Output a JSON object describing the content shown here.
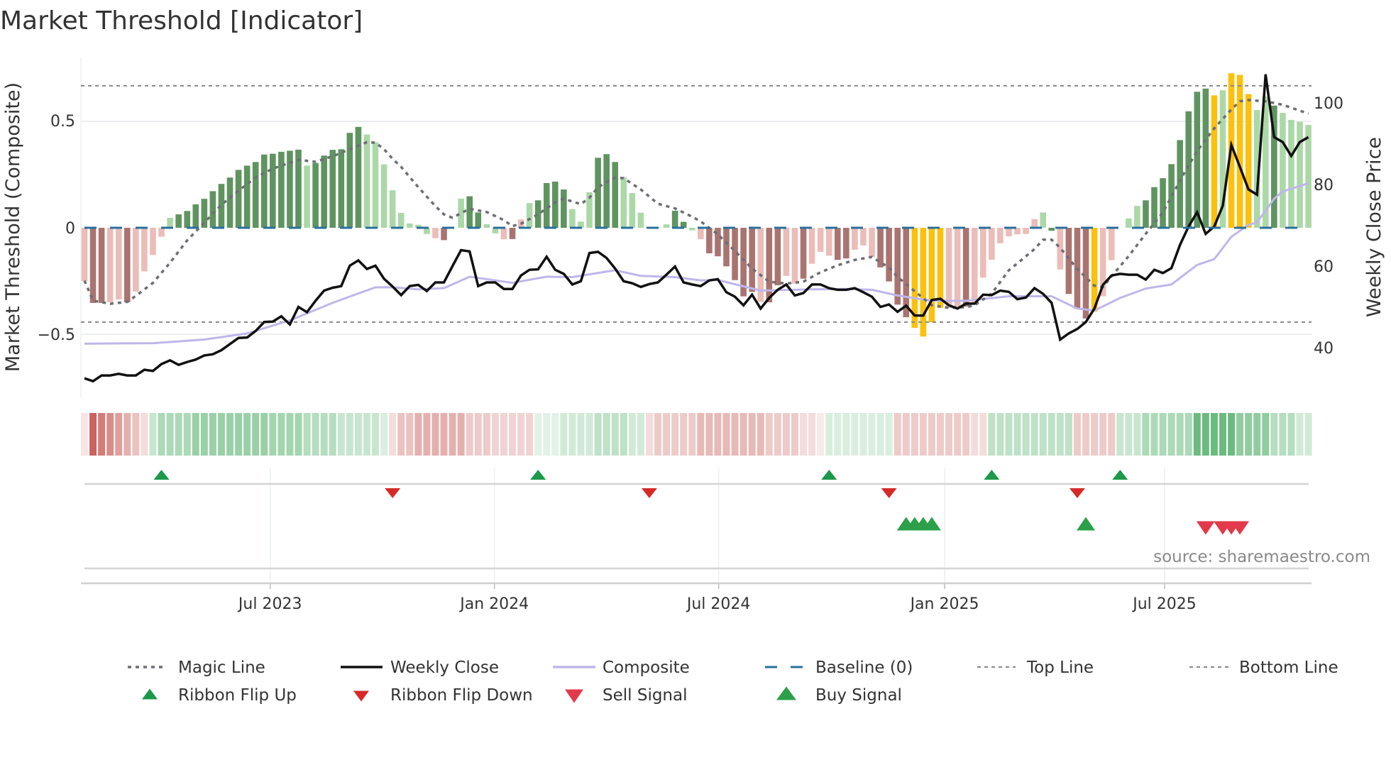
{
  "title": "Market Threshold [Indicator]",
  "source": "source: sharemaestro.com",
  "colors": {
    "bar_G": "#5f9460",
    "bar_g": "#acd8a8",
    "bar_R": "#a97470",
    "bar_r": "#ebbdb8",
    "bar_Y": "#fbc10c",
    "magic": "#6e6e76",
    "close": "#111111",
    "composite": "#bfb6ea",
    "baseline": "#2a6f9c",
    "flip_up": "#1a9a4a",
    "flip_down": "#d62a27",
    "buy": "#2ca048",
    "sell": "#e23a4a",
    "ribbon_red": "#c4504b",
    "ribbon_green": "#46aa5f"
  },
  "chart_data": {
    "type": "bar",
    "title": "Market Threshold [Indicator]",
    "ylabel": "Market Threshold (Composite)",
    "ylabel_right": "Weekly Close Price",
    "ylim": [
      -0.8,
      0.8
    ],
    "ylim_right": [
      30,
      110
    ],
    "yticks": [
      {
        "v": 0.5,
        "label": "0.5"
      },
      {
        "v": 0,
        "label": "0"
      },
      {
        "v": -0.5,
        "label": "−0.5"
      }
    ],
    "yticks_right": [
      {
        "v": 100,
        "label": "100"
      },
      {
        "v": 80,
        "label": "80"
      },
      {
        "v": 60,
        "label": "60"
      },
      {
        "v": 40,
        "label": "40"
      }
    ],
    "xticks": [
      {
        "week": 22.7,
        "label": "Jul 2023"
      },
      {
        "week": 48.9,
        "label": "Jan 2024"
      },
      {
        "week": 75.1,
        "label": "Jul 2024"
      },
      {
        "week": 101.5,
        "label": "Jan 2025"
      },
      {
        "week": 127.2,
        "label": "Jul 2025"
      }
    ],
    "top_line": 0.667,
    "bottom_line": -0.443,
    "baseline": 0,
    "composite_bars": [
      -0.25,
      -0.353,
      -0.353,
      -0.35,
      -0.337,
      -0.35,
      -0.3,
      -0.205,
      -0.128,
      -0.042,
      0.047,
      0.063,
      0.079,
      0.11,
      0.136,
      0.172,
      0.206,
      0.236,
      0.272,
      0.292,
      0.309,
      0.344,
      0.348,
      0.357,
      0.362,
      0.367,
      0.292,
      0.304,
      0.339,
      0.366,
      0.369,
      0.446,
      0.474,
      0.438,
      0.402,
      0.298,
      0.176,
      0.07,
      0.02,
      0.014,
      -0.029,
      -0.049,
      -0.058,
      0,
      0.137,
      0.148,
      0.072,
      0.017,
      -0.026,
      -0.054,
      -0.053,
      0.039,
      0.116,
      0.129,
      0.21,
      0.217,
      0.18,
      0.088,
      0.029,
      0.167,
      0.329,
      0.346,
      0.309,
      0.238,
      0.163,
      0.071,
      0.004,
      0.002,
      0.016,
      0.08,
      0.028,
      -0.012,
      -0.054,
      -0.12,
      -0.134,
      -0.181,
      -0.246,
      -0.322,
      -0.301,
      -0.348,
      -0.35,
      -0.27,
      -0.226,
      -0.262,
      -0.239,
      -0.169,
      -0.113,
      -0.131,
      -0.151,
      -0.144,
      -0.103,
      -0.083,
      -0.138,
      -0.186,
      -0.252,
      -0.361,
      -0.42,
      -0.47,
      -0.511,
      -0.444,
      -0.376,
      -0.376,
      -0.37,
      -0.37,
      -0.353,
      -0.234,
      -0.15,
      -0.073,
      -0.04,
      -0.031,
      -0.029,
      0.041,
      0.072,
      -0.014,
      -0.196,
      -0.311,
      -0.381,
      -0.426,
      -0.394,
      -0.322,
      -0.152,
      0,
      0.044,
      0.103,
      0.129,
      0.191,
      0.233,
      0.299,
      0.412,
      0.547,
      0.639,
      0.654,
      0.622,
      0.646,
      0.726,
      0.718,
      0.628,
      0.553,
      0.617,
      0.574,
      0.54,
      0.507,
      0.498,
      0.483
    ],
    "bar_states": "rRRrrRrrrrgGGGGGGGGGGGGGGGgGGGGGGggggggggrRRgGGggrRrgGGGGgggGGGggggggGGgrRRRRRRrRRrrRrrrRRrrrRRRRYYYYrrRrrrrrrrrgGrRRRYrrrggGGGGGGGGYgYYYggGggggg",
    "weekly_close": [
      32.5,
      31.8,
      33.2,
      33.2,
      33.6,
      33.2,
      33.2,
      34.6,
      34.3,
      36,
      36.9,
      35.8,
      36.5,
      37.1,
      38.1,
      38.4,
      39.4,
      40.9,
      42.4,
      42.5,
      44.1,
      46.3,
      46.4,
      47.7,
      45.7,
      50,
      48.7,
      51.5,
      54,
      54.7,
      55.1,
      60.1,
      61.4,
      59.3,
      60.1,
      56.9,
      55,
      52.9,
      55.1,
      55.4,
      53.9,
      56,
      56,
      60,
      63.9,
      63.6,
      55.1,
      56,
      56,
      54.4,
      54.4,
      57.7,
      59.1,
      59.2,
      62.3,
      59.1,
      58.1,
      55.5,
      56.3,
      63.2,
      63.5,
      62,
      59.4,
      56.3,
      55.8,
      54.9,
      55.6,
      56,
      57.9,
      59.9,
      56,
      55.5,
      55.1,
      56.5,
      56.8,
      53.6,
      52.5,
      50.4,
      53,
      49.6,
      52.2,
      54.2,
      55.5,
      52.8,
      53.4,
      55.5,
      55.5,
      54.6,
      54.2,
      54.2,
      54.6,
      53.6,
      52.5,
      50,
      50.6,
      48.8,
      50.3,
      47.9,
      47.9,
      51.7,
      52,
      50.4,
      49.6,
      50.8,
      50.8,
      53,
      52.9,
      54,
      53.7,
      51.9,
      52.3,
      54.6,
      53.2,
      51,
      42,
      43.5,
      44.6,
      46.3,
      49.6,
      55.4,
      57.7,
      58.1,
      57.9,
      57.9,
      56.7,
      59.1,
      58.3,
      59.5,
      65.2,
      69.7,
      73.2,
      67.9,
      69.7,
      74.8,
      89.7,
      84.3,
      78.8,
      77.5,
      107,
      91.6,
      90.4,
      87,
      90.4,
      91.6
    ],
    "composite_line": [
      [
        1,
        41
      ],
      [
        9,
        41.1
      ],
      [
        15,
        42
      ],
      [
        20,
        43.5
      ],
      [
        25,
        46.7
      ],
      [
        30,
        51
      ],
      [
        33,
        53.3
      ],
      [
        35,
        54.8
      ],
      [
        37,
        54.8
      ],
      [
        40,
        54.3
      ],
      [
        43,
        54.6
      ],
      [
        46,
        57.4
      ],
      [
        51,
        55.9
      ],
      [
        55,
        57.4
      ],
      [
        58,
        57.3
      ],
      [
        63,
        59
      ],
      [
        66,
        57.6
      ],
      [
        70,
        57.3
      ],
      [
        73,
        56.5
      ],
      [
        75,
        56.6
      ],
      [
        80,
        54
      ],
      [
        86,
        54.3
      ],
      [
        90,
        54.4
      ],
      [
        93,
        54.2
      ],
      [
        96,
        52.8
      ],
      [
        100,
        51.5
      ],
      [
        104,
        51.5
      ],
      [
        109,
        52.6
      ],
      [
        114,
        52.6
      ],
      [
        117,
        49.6
      ],
      [
        119,
        49.1
      ],
      [
        122,
        52.2
      ],
      [
        125,
        54.5
      ],
      [
        128,
        55.5
      ],
      [
        131,
        60.3
      ],
      [
        133,
        61.7
      ],
      [
        135,
        67.2
      ],
      [
        137,
        70.1
      ],
      [
        138,
        70.7
      ],
      [
        140,
        76.5
      ],
      [
        141,
        78.3
      ],
      [
        144,
        80.3
      ]
    ],
    "magic_line": [
      [
        1,
        -0.248
      ],
      [
        2,
        -0.342
      ],
      [
        4,
        -0.357
      ],
      [
        6,
        -0.348
      ],
      [
        7,
        -0.32
      ],
      [
        9,
        -0.259
      ],
      [
        11,
        -0.164
      ],
      [
        13,
        -0.059
      ],
      [
        15,
        0.024
      ],
      [
        17,
        0.108
      ],
      [
        19,
        0.174
      ],
      [
        21,
        0.236
      ],
      [
        23,
        0.278
      ],
      [
        26,
        0.319
      ],
      [
        28,
        0.31
      ],
      [
        30,
        0.336
      ],
      [
        32,
        0.369
      ],
      [
        34,
        0.402
      ],
      [
        35,
        0.4
      ],
      [
        36,
        0.369
      ],
      [
        37,
        0.324
      ],
      [
        38,
        0.286
      ],
      [
        40,
        0.191
      ],
      [
        42,
        0.102
      ],
      [
        43,
        0.063
      ],
      [
        44,
        0.047
      ],
      [
        45,
        0.069
      ],
      [
        46,
        0.089
      ],
      [
        48,
        0.074
      ],
      [
        50,
        0.036
      ],
      [
        51,
        0.008
      ],
      [
        52,
        0.019
      ],
      [
        54,
        0.063
      ],
      [
        56,
        0.119
      ],
      [
        57,
        0.136
      ],
      [
        59,
        0.111
      ],
      [
        60,
        0.141
      ],
      [
        61,
        0.191
      ],
      [
        63,
        0.236
      ],
      [
        64,
        0.233
      ],
      [
        66,
        0.18
      ],
      [
        68,
        0.113
      ],
      [
        70,
        0.091
      ],
      [
        72,
        0.052
      ],
      [
        73,
        0.03
      ],
      [
        75,
        -0.031
      ],
      [
        77,
        -0.109
      ],
      [
        79,
        -0.192
      ],
      [
        81,
        -0.253
      ],
      [
        83,
        -0.262
      ],
      [
        85,
        -0.253
      ],
      [
        87,
        -0.209
      ],
      [
        89,
        -0.176
      ],
      [
        91,
        -0.151
      ],
      [
        93,
        -0.137
      ],
      [
        95,
        -0.187
      ],
      [
        96,
        -0.231
      ],
      [
        98,
        -0.298
      ],
      [
        100,
        -0.364
      ],
      [
        102,
        -0.376
      ],
      [
        104,
        -0.373
      ],
      [
        105,
        -0.364
      ],
      [
        107,
        -0.309
      ],
      [
        109,
        -0.2
      ],
      [
        110,
        -0.167
      ],
      [
        112,
        -0.1
      ],
      [
        113,
        -0.056
      ],
      [
        114,
        -0.056
      ],
      [
        115,
        -0.094
      ],
      [
        117,
        -0.194
      ],
      [
        119,
        -0.272
      ],
      [
        120,
        -0.278
      ],
      [
        121,
        -0.228
      ],
      [
        123,
        -0.133
      ],
      [
        125,
        -0.028
      ],
      [
        127,
        0.072
      ],
      [
        129,
        0.222
      ],
      [
        131,
        0.361
      ],
      [
        133,
        0.467
      ],
      [
        135,
        0.556
      ],
      [
        136,
        0.594
      ],
      [
        137,
        0.6
      ],
      [
        139,
        0.594
      ],
      [
        141,
        0.578
      ],
      [
        144,
        0.536
      ]
    ],
    "ribbon_runs": [
      [
        1,
        1,
        -0.15
      ],
      [
        2,
        2,
        -0.9
      ],
      [
        3,
        3,
        -0.75
      ],
      [
        4,
        4,
        -0.65
      ],
      [
        5,
        5,
        -0.55
      ],
      [
        6,
        6,
        -0.45
      ],
      [
        7,
        7,
        -0.35
      ],
      [
        8,
        8,
        -0.2
      ],
      [
        9,
        9,
        0.3
      ],
      [
        10,
        13,
        0.45
      ],
      [
        14,
        22,
        0.55
      ],
      [
        23,
        26,
        0.5
      ],
      [
        27,
        30,
        0.4
      ],
      [
        31,
        35,
        0.3
      ],
      [
        36,
        36,
        0.2
      ],
      [
        37,
        37,
        -0.2
      ],
      [
        38,
        39,
        -0.35
      ],
      [
        40,
        45,
        -0.45
      ],
      [
        46,
        48,
        -0.3
      ],
      [
        49,
        53,
        -0.25
      ],
      [
        54,
        56,
        0.15
      ],
      [
        57,
        60,
        0.25
      ],
      [
        61,
        64,
        0.35
      ],
      [
        65,
        66,
        0.25
      ],
      [
        67,
        67,
        -0.2
      ],
      [
        68,
        72,
        -0.3
      ],
      [
        73,
        80,
        -0.4
      ],
      [
        81,
        84,
        -0.3
      ],
      [
        85,
        86,
        -0.2
      ],
      [
        87,
        87,
        -0.12
      ],
      [
        88,
        95,
        0.2
      ],
      [
        96,
        104,
        -0.3
      ],
      [
        105,
        106,
        -0.2
      ],
      [
        107,
        116,
        0.35
      ],
      [
        117,
        121,
        -0.3
      ],
      [
        122,
        124,
        0.3
      ],
      [
        125,
        130,
        0.45
      ],
      [
        131,
        135,
        0.8
      ],
      [
        136,
        139,
        0.6
      ],
      [
        140,
        142,
        0.4
      ],
      [
        143,
        144,
        0.25
      ]
    ],
    "ribbon_flip_up": [
      10,
      54,
      88,
      107,
      122
    ],
    "ribbon_flip_down": [
      37,
      67,
      95,
      117
    ],
    "buy_signals": [
      97,
      98,
      99,
      100,
      118
    ],
    "sell_signals": [
      132,
      134,
      135,
      136
    ],
    "legend": [
      {
        "label": "Magic Line",
        "kind": "dotted"
      },
      {
        "label": "Weekly Close",
        "kind": "solid-black"
      },
      {
        "label": "Composite",
        "kind": "solid-lavender"
      },
      {
        "label": "Baseline (0)",
        "kind": "dashed-blue"
      },
      {
        "label": "Top Line",
        "kind": "dashed-gray"
      },
      {
        "label": "Bottom Line",
        "kind": "dashed-gray"
      },
      {
        "label": "Ribbon Flip Up",
        "kind": "tri-up-flip"
      },
      {
        "label": "Ribbon Flip Down",
        "kind": "tri-down-flip"
      },
      {
        "label": "Sell Signal",
        "kind": "tri-down-sell"
      },
      {
        "label": "Buy Signal",
        "kind": "tri-up-buy"
      }
    ]
  }
}
